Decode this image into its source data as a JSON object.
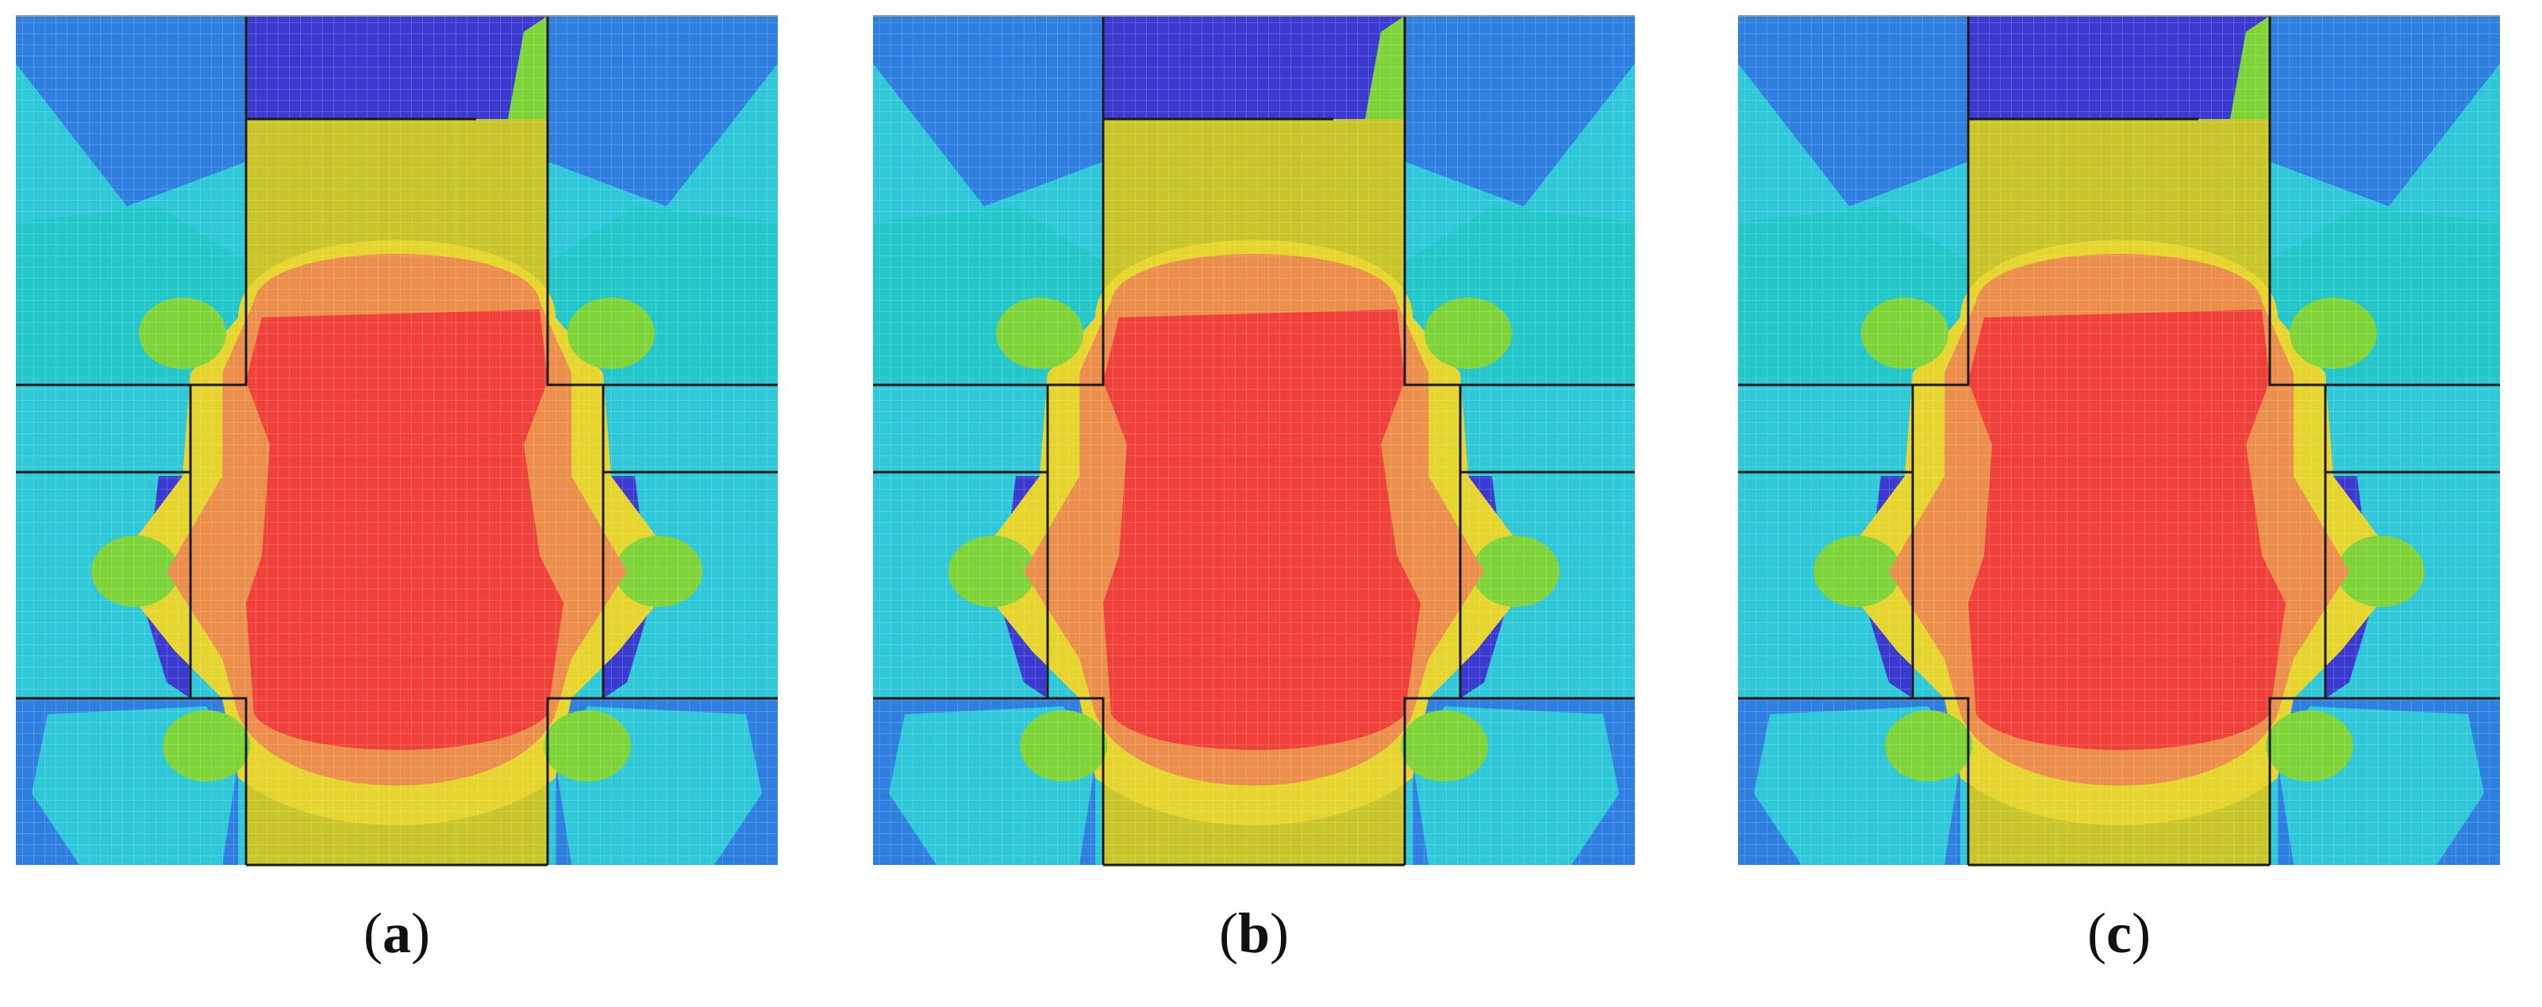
{
  "figure": {
    "panels": [
      {
        "id": "a",
        "caption_open": "(",
        "caption_letter": "a",
        "caption_close": ")"
      },
      {
        "id": "b",
        "caption_open": "(",
        "caption_letter": "b",
        "caption_close": ")"
      },
      {
        "id": "c",
        "caption_open": "(",
        "caption_letter": "c",
        "caption_close": ")"
      }
    ]
  },
  "colors": {
    "red": "#F0403A",
    "orange": "#EC8F4C",
    "yellow_olive": "#C8C62A",
    "yellow": "#E6D52E",
    "green": "#7FD43A",
    "teal": "#24C7C9",
    "cyan": "#2FC8D8",
    "blue": "#2F7FE0",
    "navy": "#3A3AD0",
    "background": "#FFFFFF"
  }
}
